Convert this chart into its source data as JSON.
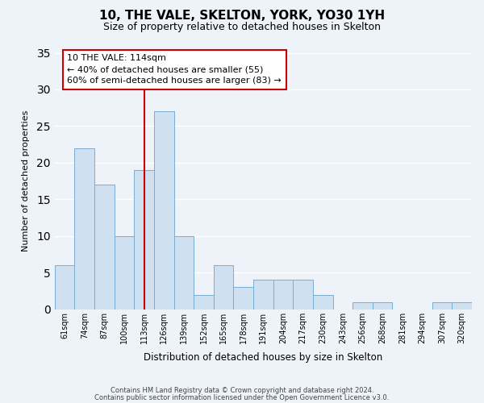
{
  "title": "10, THE VALE, SKELTON, YORK, YO30 1YH",
  "subtitle": "Size of property relative to detached houses in Skelton",
  "xlabel": "Distribution of detached houses by size in Skelton",
  "ylabel": "Number of detached properties",
  "bar_labels": [
    "61sqm",
    "74sqm",
    "87sqm",
    "100sqm",
    "113sqm",
    "126sqm",
    "139sqm",
    "152sqm",
    "165sqm",
    "178sqm",
    "191sqm",
    "204sqm",
    "217sqm",
    "230sqm",
    "243sqm",
    "256sqm",
    "268sqm",
    "281sqm",
    "294sqm",
    "307sqm",
    "320sqm"
  ],
  "bar_values": [
    6,
    22,
    17,
    10,
    19,
    27,
    10,
    2,
    6,
    3,
    4,
    4,
    4,
    2,
    0,
    1,
    1,
    0,
    0,
    1,
    1
  ],
  "bar_color": "#cfe0f0",
  "bar_edge_color": "#7aadd0",
  "vline_x_idx": 4,
  "vline_color": "#cc0000",
  "annotation_title": "10 THE VALE: 114sqm",
  "annotation_line1": "← 40% of detached houses are smaller (55)",
  "annotation_line2": "60% of semi-detached houses are larger (83) →",
  "annotation_box_color": "white",
  "annotation_box_edge": "#cc0000",
  "ylim": [
    0,
    35
  ],
  "yticks": [
    0,
    5,
    10,
    15,
    20,
    25,
    30,
    35
  ],
  "footer1": "Contains HM Land Registry data © Crown copyright and database right 2024.",
  "footer2": "Contains public sector information licensed under the Open Government Licence v3.0.",
  "bg_color": "#eef3fa",
  "grid_color": "#ffffff",
  "title_fontsize": 11,
  "subtitle_fontsize": 9
}
